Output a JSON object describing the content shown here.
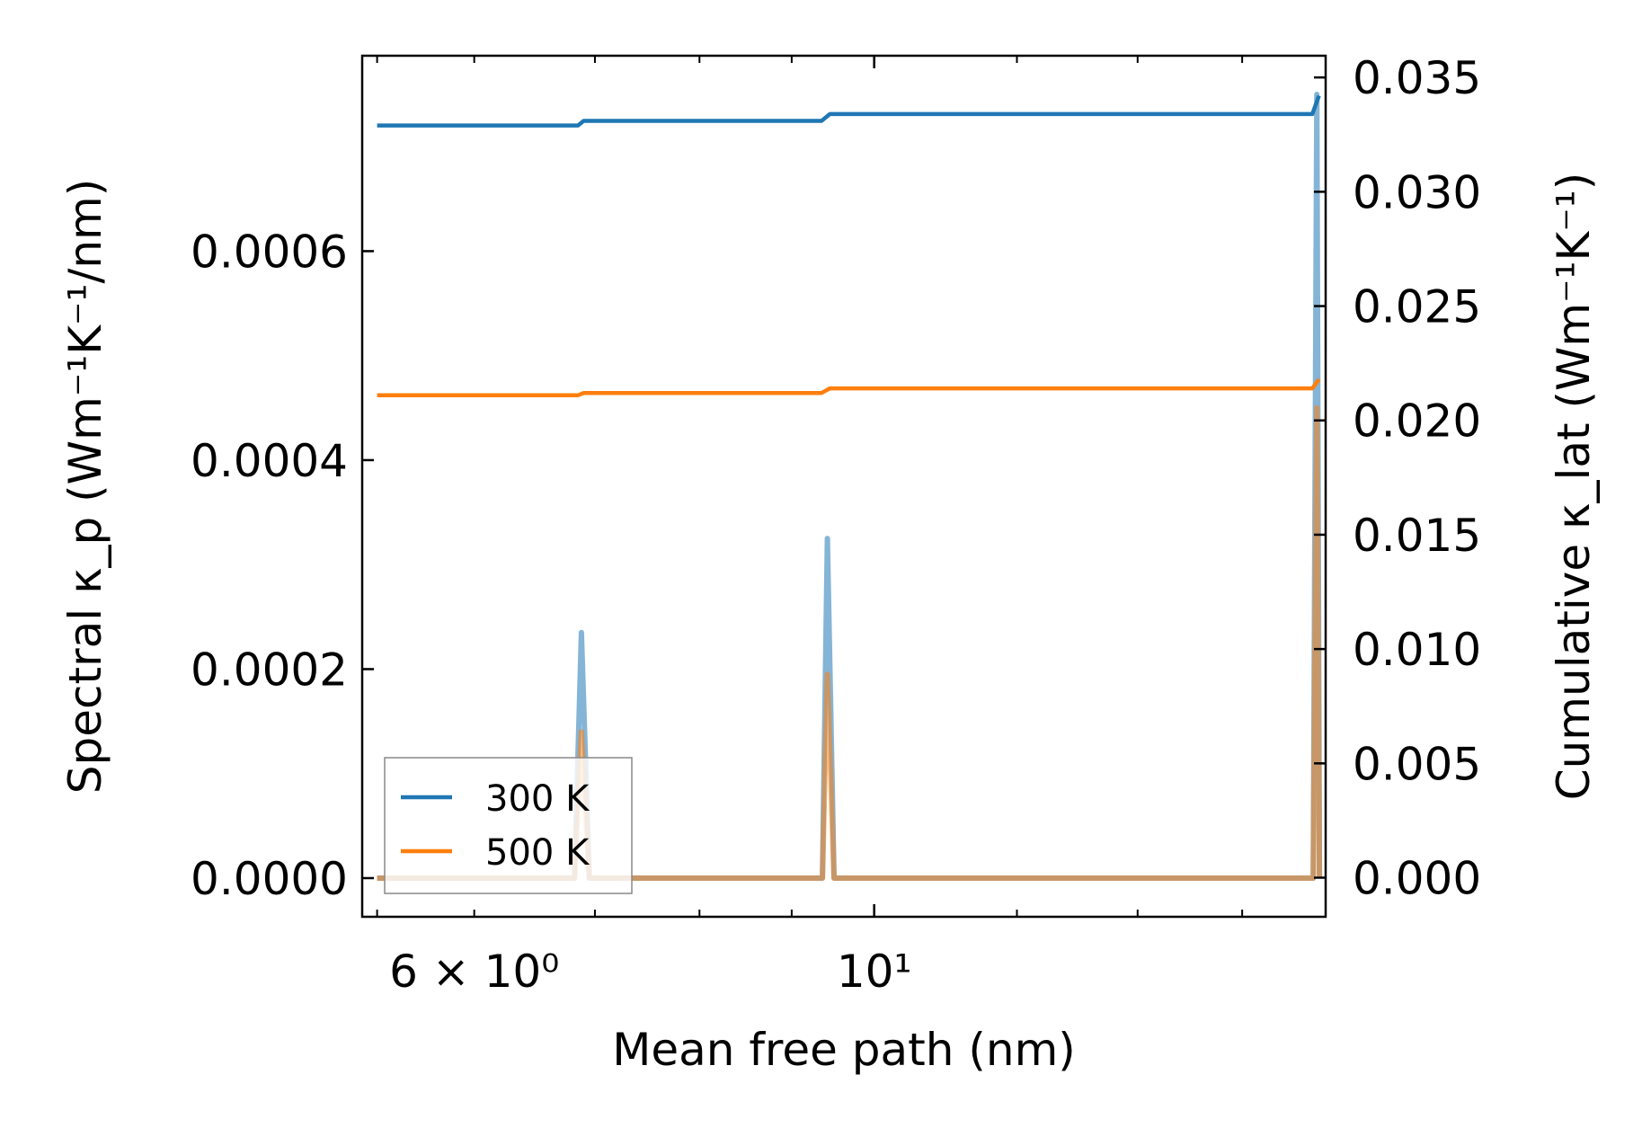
{
  "chart_data": {
    "type": "line",
    "xlabel": "Mean free path (nm)",
    "ylabel_left": "Spectral κ_p (Wm⁻¹K⁻¹/nm)",
    "ylabel_right": "Cumulative κ_lat (Wm⁻¹K⁻¹)",
    "x_scale": "log",
    "xlim": [
      5.2,
      17.8
    ],
    "x_tick_labels": [
      {
        "value": 6,
        "label": "6 × 10⁰"
      },
      {
        "value": 10,
        "label": "10¹"
      }
    ],
    "x_minor_ticks": [
      5.3,
      6,
      7,
      8,
      9,
      10,
      12,
      14,
      16
    ],
    "ylim_left": [
      -3.7e-05,
      0.000787
    ],
    "yticks_left": [
      {
        "value": 0.0,
        "label": "0.0000"
      },
      {
        "value": 0.0002,
        "label": "0.0002"
      },
      {
        "value": 0.0004,
        "label": "0.0004"
      },
      {
        "value": 0.0006,
        "label": "0.0006"
      }
    ],
    "ylim_right": [
      -0.00171,
      0.03595
    ],
    "yticks_right": [
      {
        "value": 0.0,
        "label": "0.000"
      },
      {
        "value": 0.005,
        "label": "0.005"
      },
      {
        "value": 0.01,
        "label": "0.010"
      },
      {
        "value": 0.015,
        "label": "0.015"
      },
      {
        "value": 0.02,
        "label": "0.020"
      },
      {
        "value": 0.025,
        "label": "0.025"
      },
      {
        "value": 0.03,
        "label": "0.030"
      },
      {
        "value": 0.035,
        "label": "0.035"
      }
    ],
    "legend": {
      "position": "lower-left",
      "entries": [
        "300 K",
        "500 K"
      ]
    },
    "grid": false,
    "series": [
      {
        "name": "300 K",
        "color": "#1f77b4",
        "axis": "right",
        "kind": "cumulative",
        "points": [
          [
            5.3,
            0.0329
          ],
          [
            6.85,
            0.0329
          ],
          [
            6.9,
            0.0331
          ],
          [
            9.35,
            0.0331
          ],
          [
            9.45,
            0.0334
          ],
          [
            17.5,
            0.0334
          ],
          [
            17.65,
            0.0342
          ]
        ]
      },
      {
        "name": "500 K",
        "color": "#ff7f0e",
        "axis": "right",
        "kind": "cumulative",
        "points": [
          [
            5.3,
            0.0211
          ],
          [
            6.85,
            0.0211
          ],
          [
            6.9,
            0.0212
          ],
          [
            9.35,
            0.0212
          ],
          [
            9.45,
            0.0214
          ],
          [
            17.5,
            0.0214
          ],
          [
            17.65,
            0.0218
          ]
        ]
      },
      {
        "name": "300 K",
        "color": "#1f77b4",
        "axis": "left",
        "kind": "spectral",
        "points": [
          [
            5.3,
            0
          ],
          [
            6.82,
            0
          ],
          [
            6.88,
            0.000235
          ],
          [
            6.95,
            0
          ],
          [
            9.36,
            0
          ],
          [
            9.42,
            0.000325
          ],
          [
            9.5,
            0
          ],
          [
            17.52,
            0
          ],
          [
            17.6,
            0.00075
          ],
          [
            17.66,
            0
          ]
        ]
      },
      {
        "name": "500 K",
        "color": "#ff7f0e",
        "axis": "left",
        "kind": "spectral",
        "points": [
          [
            5.3,
            0
          ],
          [
            6.82,
            0
          ],
          [
            6.88,
            0.00014
          ],
          [
            6.95,
            0
          ],
          [
            9.36,
            0
          ],
          [
            9.42,
            0.000195
          ],
          [
            9.5,
            0
          ],
          [
            17.52,
            0
          ],
          [
            17.6,
            0.00045
          ],
          [
            17.66,
            0
          ]
        ]
      }
    ]
  }
}
